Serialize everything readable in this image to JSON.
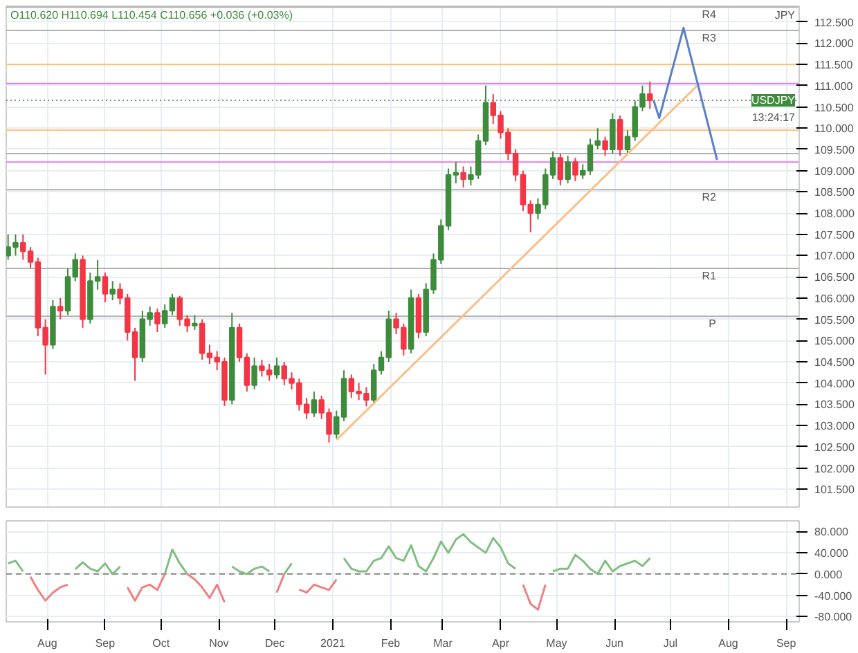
{
  "chart_data": [
    {
      "type": "candlestick",
      "annotations": [
        "O110.620 H110.694 L110.454 C110.656 +0.036 (+0.03%)",
        "13:24:17",
        "JPY"
      ],
      "x": [
        "2020-07-11",
        "2020-07-15",
        "2020-07-19",
        "2020-07-23",
        "2020-07-27",
        "2020-07-31",
        "2020-08-04",
        "2020-08-08",
        "2020-08-12",
        "2020-08-16",
        "2020-08-20",
        "2020-08-24",
        "2020-08-28",
        "2020-09-01",
        "2020-09-05",
        "2020-09-09",
        "2020-09-13",
        "2020-09-17",
        "2020-09-21",
        "2020-09-25",
        "2020-09-29",
        "2020-10-03",
        "2020-10-07",
        "2020-10-11",
        "2020-10-15",
        "2020-10-19",
        "2020-10-23",
        "2020-10-27",
        "2020-10-31",
        "2020-11-04",
        "2020-11-08",
        "2020-11-12",
        "2020-11-16",
        "2020-11-20",
        "2020-11-24",
        "2020-11-28",
        "2020-12-02",
        "2020-12-06",
        "2020-12-10",
        "2020-12-14",
        "2020-12-18",
        "2020-12-22",
        "2020-12-26",
        "2020-12-30",
        "2021-01-03",
        "2021-01-07",
        "2021-01-11",
        "2021-01-15",
        "2021-01-19",
        "2021-01-23",
        "2021-01-27",
        "2021-01-31",
        "2021-02-04",
        "2021-02-08",
        "2021-02-12",
        "2021-02-16",
        "2021-02-20",
        "2021-02-24",
        "2021-02-28",
        "2021-03-04",
        "2021-03-08",
        "2021-03-12",
        "2021-03-16",
        "2021-03-20",
        "2021-03-24",
        "2021-03-28",
        "2021-04-01",
        "2021-04-05",
        "2021-04-09",
        "2021-04-13",
        "2021-04-17",
        "2021-04-21",
        "2021-04-25",
        "2021-04-29",
        "2021-05-03",
        "2021-05-07",
        "2021-05-11",
        "2021-05-15",
        "2021-05-19",
        "2021-05-23",
        "2021-05-27",
        "2021-05-31",
        "2021-06-04",
        "2021-06-08",
        "2021-06-12",
        "2021-06-16",
        "2021-06-20"
      ],
      "ohlc": [
        [
          107.0,
          107.5,
          106.9,
          107.2
        ],
        [
          107.2,
          107.5,
          107.0,
          107.3
        ],
        [
          107.3,
          107.5,
          106.9,
          107.1
        ],
        [
          107.1,
          107.2,
          106.7,
          106.85
        ],
        [
          106.85,
          106.95,
          105.1,
          105.3
        ],
        [
          105.3,
          105.5,
          104.2,
          104.9
        ],
        [
          104.9,
          105.95,
          104.8,
          105.8
        ],
        [
          105.8,
          106.0,
          105.5,
          105.7
        ],
        [
          105.7,
          106.7,
          105.6,
          106.5
        ],
        [
          106.5,
          107.05,
          106.4,
          106.9
        ],
        [
          106.9,
          107.0,
          105.3,
          105.5
        ],
        [
          105.5,
          106.6,
          105.4,
          106.4
        ],
        [
          106.4,
          106.9,
          106.2,
          106.5
        ],
        [
          106.5,
          106.6,
          105.9,
          106.1
        ],
        [
          106.1,
          106.4,
          105.95,
          106.2
        ],
        [
          106.2,
          106.35,
          105.85,
          106.0
        ],
        [
          106.0,
          106.1,
          105.0,
          105.2
        ],
        [
          105.2,
          105.3,
          104.05,
          104.6
        ],
        [
          104.6,
          105.7,
          104.5,
          105.5
        ],
        [
          105.5,
          105.8,
          105.35,
          105.65
        ],
        [
          105.65,
          105.75,
          105.2,
          105.4
        ],
        [
          105.4,
          105.85,
          105.3,
          105.7
        ],
        [
          105.7,
          106.1,
          105.6,
          106.0
        ],
        [
          106.0,
          106.05,
          105.35,
          105.5
        ],
        [
          105.5,
          105.6,
          105.2,
          105.35
        ],
        [
          105.35,
          105.6,
          105.25,
          105.4
        ],
        [
          105.4,
          105.5,
          104.55,
          104.7
        ],
        [
          104.7,
          104.9,
          104.45,
          104.6
        ],
        [
          104.6,
          104.75,
          104.3,
          104.5
        ],
        [
          104.5,
          104.6,
          103.46,
          103.6
        ],
        [
          103.6,
          105.65,
          103.5,
          105.3
        ],
        [
          105.3,
          105.4,
          104.5,
          104.6
        ],
        [
          104.6,
          104.7,
          103.8,
          103.95
        ],
        [
          103.95,
          104.6,
          103.85,
          104.4
        ],
        [
          104.4,
          104.55,
          104.15,
          104.3
        ],
        [
          104.3,
          104.45,
          104.05,
          104.2
        ],
        [
          104.2,
          104.6,
          104.1,
          104.4
        ],
        [
          104.4,
          104.5,
          103.95,
          104.1
        ],
        [
          104.1,
          104.25,
          103.85,
          104.0
        ],
        [
          104.0,
          104.1,
          103.35,
          103.5
        ],
        [
          103.5,
          103.65,
          103.15,
          103.3
        ],
        [
          103.3,
          103.8,
          103.2,
          103.6
        ],
        [
          103.6,
          103.7,
          103.15,
          103.3
        ],
        [
          103.3,
          103.4,
          102.6,
          102.8
        ],
        [
          102.8,
          103.35,
          102.7,
          103.2
        ],
        [
          103.2,
          104.3,
          103.1,
          104.1
        ],
        [
          104.1,
          104.2,
          103.65,
          103.8
        ],
        [
          103.8,
          104.0,
          103.6,
          103.75
        ],
        [
          103.75,
          103.9,
          103.45,
          103.6
        ],
        [
          103.6,
          104.45,
          103.5,
          104.3
        ],
        [
          104.3,
          104.75,
          104.2,
          104.6
        ],
        [
          104.6,
          105.7,
          104.5,
          105.5
        ],
        [
          105.5,
          105.65,
          105.15,
          105.3
        ],
        [
          105.3,
          105.4,
          104.65,
          104.8
        ],
        [
          104.8,
          106.2,
          104.7,
          106.0
        ],
        [
          106.0,
          106.1,
          105.05,
          105.2
        ],
        [
          105.2,
          106.35,
          105.1,
          106.2
        ],
        [
          106.2,
          107.05,
          106.1,
          106.9
        ],
        [
          106.9,
          107.85,
          106.8,
          107.7
        ],
        [
          107.7,
          109.05,
          107.6,
          108.9
        ],
        [
          108.9,
          109.2,
          108.7,
          108.95
        ],
        [
          108.95,
          109.1,
          108.6,
          108.8
        ],
        [
          108.8,
          109.1,
          108.65,
          108.9
        ],
        [
          108.9,
          109.85,
          108.8,
          109.7
        ],
        [
          109.7,
          111.0,
          109.6,
          110.6
        ],
        [
          110.6,
          110.8,
          110.1,
          110.3
        ],
        [
          110.3,
          110.4,
          109.75,
          109.9
        ],
        [
          109.9,
          110.0,
          109.25,
          109.4
        ],
        [
          109.4,
          109.5,
          108.75,
          108.9
        ],
        [
          108.9,
          109.0,
          108.05,
          108.2
        ],
        [
          108.2,
          108.3,
          107.55,
          108.0
        ],
        [
          108.0,
          108.35,
          107.85,
          108.2
        ],
        [
          108.2,
          109.05,
          108.1,
          108.9
        ],
        [
          108.9,
          109.45,
          108.8,
          109.3
        ],
        [
          109.3,
          109.4,
          108.65,
          108.8
        ],
        [
          108.8,
          109.35,
          108.7,
          109.2
        ],
        [
          109.2,
          109.3,
          108.75,
          108.9
        ],
        [
          108.9,
          109.15,
          108.8,
          109.0
        ],
        [
          109.0,
          109.75,
          108.9,
          109.6
        ],
        [
          109.6,
          110.0,
          109.5,
          109.7
        ],
        [
          109.7,
          109.8,
          109.35,
          109.5
        ],
        [
          109.5,
          110.35,
          109.4,
          110.2
        ],
        [
          110.2,
          110.3,
          109.35,
          109.5
        ],
        [
          109.5,
          109.95,
          109.4,
          109.8
        ],
        [
          109.8,
          110.65,
          109.7,
          110.5
        ],
        [
          110.5,
          111.0,
          110.4,
          110.8
        ],
        [
          110.8,
          111.1,
          110.454,
          110.656
        ]
      ],
      "colors": [
        "#3c8c3c",
        "#3c8c3c",
        "#f23645",
        "#f23645",
        "#f23645",
        "#f23645",
        "#3c8c3c",
        "#f23645",
        "#3c8c3c",
        "#3c8c3c",
        "#f23645",
        "#3c8c3c",
        "#3c8c3c",
        "#f23645",
        "#3c8c3c",
        "#f23645",
        "#f23645",
        "#f23645",
        "#3c8c3c",
        "#3c8c3c",
        "#f23645",
        "#3c8c3c",
        "#3c8c3c",
        "#f23645",
        "#f23645",
        "#3c8c3c",
        "#f23645",
        "#f23645",
        "#f23645",
        "#f23645",
        "#3c8c3c",
        "#f23645",
        "#f23645",
        "#3c8c3c",
        "#f23645",
        "#f23645",
        "#3c8c3c",
        "#f23645",
        "#f23645",
        "#f23645",
        "#f23645",
        "#3c8c3c",
        "#f23645",
        "#f23645",
        "#3c8c3c",
        "#3c8c3c",
        "#f23645",
        "#f23645",
        "#f23645",
        "#3c8c3c",
        "#3c8c3c",
        "#3c8c3c",
        "#f23645",
        "#f23645",
        "#3c8c3c",
        "#f23645",
        "#3c8c3c",
        "#3c8c3c",
        "#3c8c3c",
        "#3c8c3c",
        "#3c8c3c",
        "#f23645",
        "#3c8c3c",
        "#3c8c3c",
        "#3c8c3c",
        "#f23645",
        "#f23645",
        "#f23645",
        "#f23645",
        "#f23645",
        "#f23645",
        "#3c8c3c",
        "#3c8c3c",
        "#3c8c3c",
        "#f23645",
        "#3c8c3c",
        "#f23645",
        "#3c8c3c",
        "#3c8c3c",
        "#3c8c3c",
        "#f23645",
        "#3c8c3c",
        "#f23645",
        "#3c8c3c",
        "#3c8c3c",
        "#3c8c3c",
        "#f23645"
      ],
      "series": [
        {
          "type": "line",
          "color": "#f7c08a",
          "x": [
            "2021-01-03",
            "2021-07-16"
          ],
          "values": [
            102.66,
            111.03
          ]
        },
        {
          "type": "line",
          "color": "#5b7fc7",
          "x": [
            "2021-06-22",
            "2021-06-25",
            "2021-07-08",
            "2021-07-26"
          ],
          "values": [
            110.65,
            110.24,
            112.36,
            109.25
          ]
        }
      ],
      "ref_lines": [
        {
          "axis": "y",
          "value": 105.57,
          "label": "P",
          "color": "#b0b0b0"
        },
        {
          "axis": "y",
          "value": 106.7,
          "label": "R1",
          "color": "#b0b0b0"
        },
        {
          "axis": "y",
          "value": 108.55,
          "label": "R2",
          "color": "#b0b0b0"
        },
        {
          "axis": "y",
          "value": 112.3,
          "label": "R3",
          "color": "#b0b0b0"
        },
        {
          "axis": "y",
          "value": 112.85,
          "label": "R4",
          "color": "#b0b0b0"
        },
        {
          "axis": "y",
          "value": 111.5,
          "color": "#f5c27a"
        },
        {
          "axis": "y",
          "value": 109.95,
          "color": "#f5c27a"
        },
        {
          "axis": "y",
          "value": 111.05,
          "color": "#e57bf0"
        },
        {
          "axis": "y",
          "value": 109.2,
          "color": "#e57bf0"
        },
        {
          "axis": "y",
          "value": 109.4,
          "color": "#b0b0b0"
        },
        {
          "axis": "y",
          "value": 110.656,
          "label": "USDJPY",
          "color": "#8c8c8c",
          "line_style": "dotted"
        }
      ],
      "xlim": [
        "2020-07-10",
        "2021-09-08"
      ],
      "xticks": [
        {
          "value": "2020-08-01",
          "label": null
        },
        {
          "value": "2020-09-01",
          "label": null
        },
        {
          "value": "2020-10-01",
          "label": null
        },
        {
          "value": "2020-11-01",
          "label": null
        },
        {
          "value": "2020-12-01",
          "label": null
        },
        {
          "value": "2021-01-01",
          "label": null
        },
        {
          "value": "2021-02-01",
          "label": null
        },
        {
          "value": "2021-03-01",
          "label": null
        },
        {
          "value": "2021-04-01",
          "label": null
        },
        {
          "value": "2021-05-01",
          "label": null
        },
        {
          "value": "2021-06-01",
          "label": null
        },
        {
          "value": "2021-07-01",
          "label": null
        },
        {
          "value": "2021-08-01",
          "label": null
        },
        {
          "value": "2021-09-01",
          "label": null
        }
      ],
      "ylim": [
        101.08,
        112.87
      ],
      "yticks": [
        {
          "value": 101.5,
          "label": "101.500"
        },
        {
          "value": 102.0,
          "label": "102.000"
        },
        {
          "value": 102.5,
          "label": "102.500"
        },
        {
          "value": 103.0,
          "label": "103.000"
        },
        {
          "value": 103.5,
          "label": "103.500"
        },
        {
          "value": 104.0,
          "label": "104.000"
        },
        {
          "value": 104.5,
          "label": "104.500"
        },
        {
          "value": 105.0,
          "label": "105.000"
        },
        {
          "value": 105.5,
          "label": "105.500"
        },
        {
          "value": 106.0,
          "label": "106.000"
        },
        {
          "value": 106.5,
          "label": "106.500"
        },
        {
          "value": 107.0,
          "label": "107.000"
        },
        {
          "value": 107.5,
          "label": "107.500"
        },
        {
          "value": 108.0,
          "label": "108.000"
        },
        {
          "value": 108.5,
          "label": "108.500"
        },
        {
          "value": 109.0,
          "label": "109.000"
        },
        {
          "value": 109.5,
          "label": "109.500"
        },
        {
          "value": 110.0,
          "label": "110.000"
        },
        {
          "value": 110.5,
          "label": "110.500"
        },
        {
          "value": 111.0,
          "label": "111.000"
        },
        {
          "value": 111.5,
          "label": "111.500"
        },
        {
          "value": 112.0,
          "label": "112.000"
        },
        {
          "value": 112.5,
          "label": "112.500"
        }
      ],
      "tick_labels": "y",
      "grid": true
    },
    {
      "type": "line",
      "x": [
        "2020-07-11",
        "2020-07-15",
        "2020-07-19",
        "2020-07-23",
        "2020-07-27",
        "2020-07-31",
        "2020-08-04",
        "2020-08-08",
        "2020-08-12",
        "2020-08-16",
        "2020-08-20",
        "2020-08-24",
        "2020-08-28",
        "2020-09-01",
        "2020-09-05",
        "2020-09-09",
        "2020-09-13",
        "2020-09-17",
        "2020-09-21",
        "2020-09-25",
        "2020-09-29",
        "2020-10-03",
        "2020-10-07",
        "2020-10-11",
        "2020-10-15",
        "2020-10-19",
        "2020-10-23",
        "2020-10-27",
        "2020-10-31",
        "2020-11-04",
        "2020-11-08",
        "2020-11-12",
        "2020-11-16",
        "2020-11-20",
        "2020-11-24",
        "2020-11-28",
        "2020-12-02",
        "2020-12-06",
        "2020-12-10",
        "2020-12-14",
        "2020-12-18",
        "2020-12-22",
        "2020-12-26",
        "2020-12-30",
        "2021-01-03",
        "2021-01-07",
        "2021-01-11",
        "2021-01-15",
        "2021-01-19",
        "2021-01-23",
        "2021-01-27",
        "2021-01-31",
        "2021-02-04",
        "2021-02-08",
        "2021-02-12",
        "2021-02-16",
        "2021-02-20",
        "2021-02-24",
        "2021-02-28",
        "2021-03-04",
        "2021-03-08",
        "2021-03-12",
        "2021-03-16",
        "2021-03-20",
        "2021-03-24",
        "2021-03-28",
        "2021-04-01",
        "2021-04-05",
        "2021-04-09",
        "2021-04-13",
        "2021-04-17",
        "2021-04-21",
        "2021-04-25",
        "2021-04-29",
        "2021-05-03",
        "2021-05-07",
        "2021-05-11",
        "2021-05-15",
        "2021-05-19",
        "2021-05-23",
        "2021-05-27",
        "2021-05-31",
        "2021-06-04",
        "2021-06-08",
        "2021-06-12",
        "2021-06-16",
        "2021-06-20"
      ],
      "series": [
        {
          "color": "#7fbf7f",
          "values": [
            20,
            25,
            5,
            null,
            null,
            null,
            null,
            null,
            null,
            9,
            22,
            10,
            5,
            20,
            0,
            14,
            null,
            null,
            null,
            null,
            null,
            0,
            46,
            20,
            0,
            null,
            null,
            null,
            null,
            null,
            14,
            5,
            0,
            10,
            14,
            5,
            null,
            0,
            20,
            null,
            null,
            null,
            null,
            null,
            null,
            30,
            10,
            5,
            5,
            25,
            30,
            52,
            30,
            25,
            54,
            15,
            5,
            30,
            61,
            40,
            65,
            75,
            60,
            50,
            40,
            68,
            50,
            20,
            10,
            null,
            null,
            null,
            null,
            5,
            10,
            10,
            36,
            25,
            10,
            0,
            25,
            5,
            15,
            20,
            25,
            15,
            30
          ]
        },
        {
          "color": "#f08080",
          "values": [
            null,
            null,
            null,
            -5,
            -30,
            -50,
            -35,
            -25,
            -20,
            null,
            null,
            null,
            null,
            null,
            null,
            null,
            -25,
            -50,
            -25,
            -20,
            -30,
            0,
            null,
            null,
            0,
            -10,
            -25,
            -45,
            -20,
            -53,
            null,
            null,
            null,
            null,
            null,
            null,
            -35,
            0,
            null,
            -29,
            -35,
            -20,
            -25,
            -30,
            -10,
            null,
            null,
            null,
            null,
            null,
            null,
            null,
            null,
            null,
            null,
            null,
            null,
            null,
            null,
            null,
            null,
            null,
            null,
            null,
            null,
            null,
            null,
            null,
            null,
            -20,
            -56,
            -67,
            -20,
            null,
            null,
            null,
            null,
            null,
            null,
            null,
            null,
            null,
            null,
            null,
            null,
            null,
            null
          ]
        }
      ],
      "ref_lines": [
        {
          "axis": "y",
          "value": 0,
          "color": "#888888",
          "line_style": "dashed"
        }
      ],
      "xlim": [
        "2020-07-10",
        "2021-09-08"
      ],
      "xticks": [
        {
          "value": "2020-08-01",
          "label": "Aug"
        },
        {
          "value": "2020-09-01",
          "label": "Sep"
        },
        {
          "value": "2020-10-01",
          "label": "Oct"
        },
        {
          "value": "2020-11-01",
          "label": "Nov"
        },
        {
          "value": "2020-12-01",
          "label": "Dec"
        },
        {
          "value": "2021-01-01",
          "label": "2021"
        },
        {
          "value": "2021-02-01",
          "label": "Feb"
        },
        {
          "value": "2021-03-01",
          "label": "Mar"
        },
        {
          "value": "2021-04-01",
          "label": "Apr"
        },
        {
          "value": "2021-05-01",
          "label": "May"
        },
        {
          "value": "2021-06-01",
          "label": "Jun"
        },
        {
          "value": "2021-07-01",
          "label": "Jul"
        },
        {
          "value": "2021-08-01",
          "label": "Aug"
        },
        {
          "value": "2021-09-01",
          "label": "Sep"
        }
      ],
      "ylim": [
        -90,
        100
      ],
      "yticks": [
        {
          "value": -80,
          "label": "-80.000"
        },
        {
          "value": -40,
          "label": "-40.000"
        },
        {
          "value": 0,
          "label": "0.000"
        },
        {
          "value": 40,
          "label": "40.000"
        },
        {
          "value": 80,
          "label": "80.000"
        }
      ],
      "grid": true
    }
  ]
}
